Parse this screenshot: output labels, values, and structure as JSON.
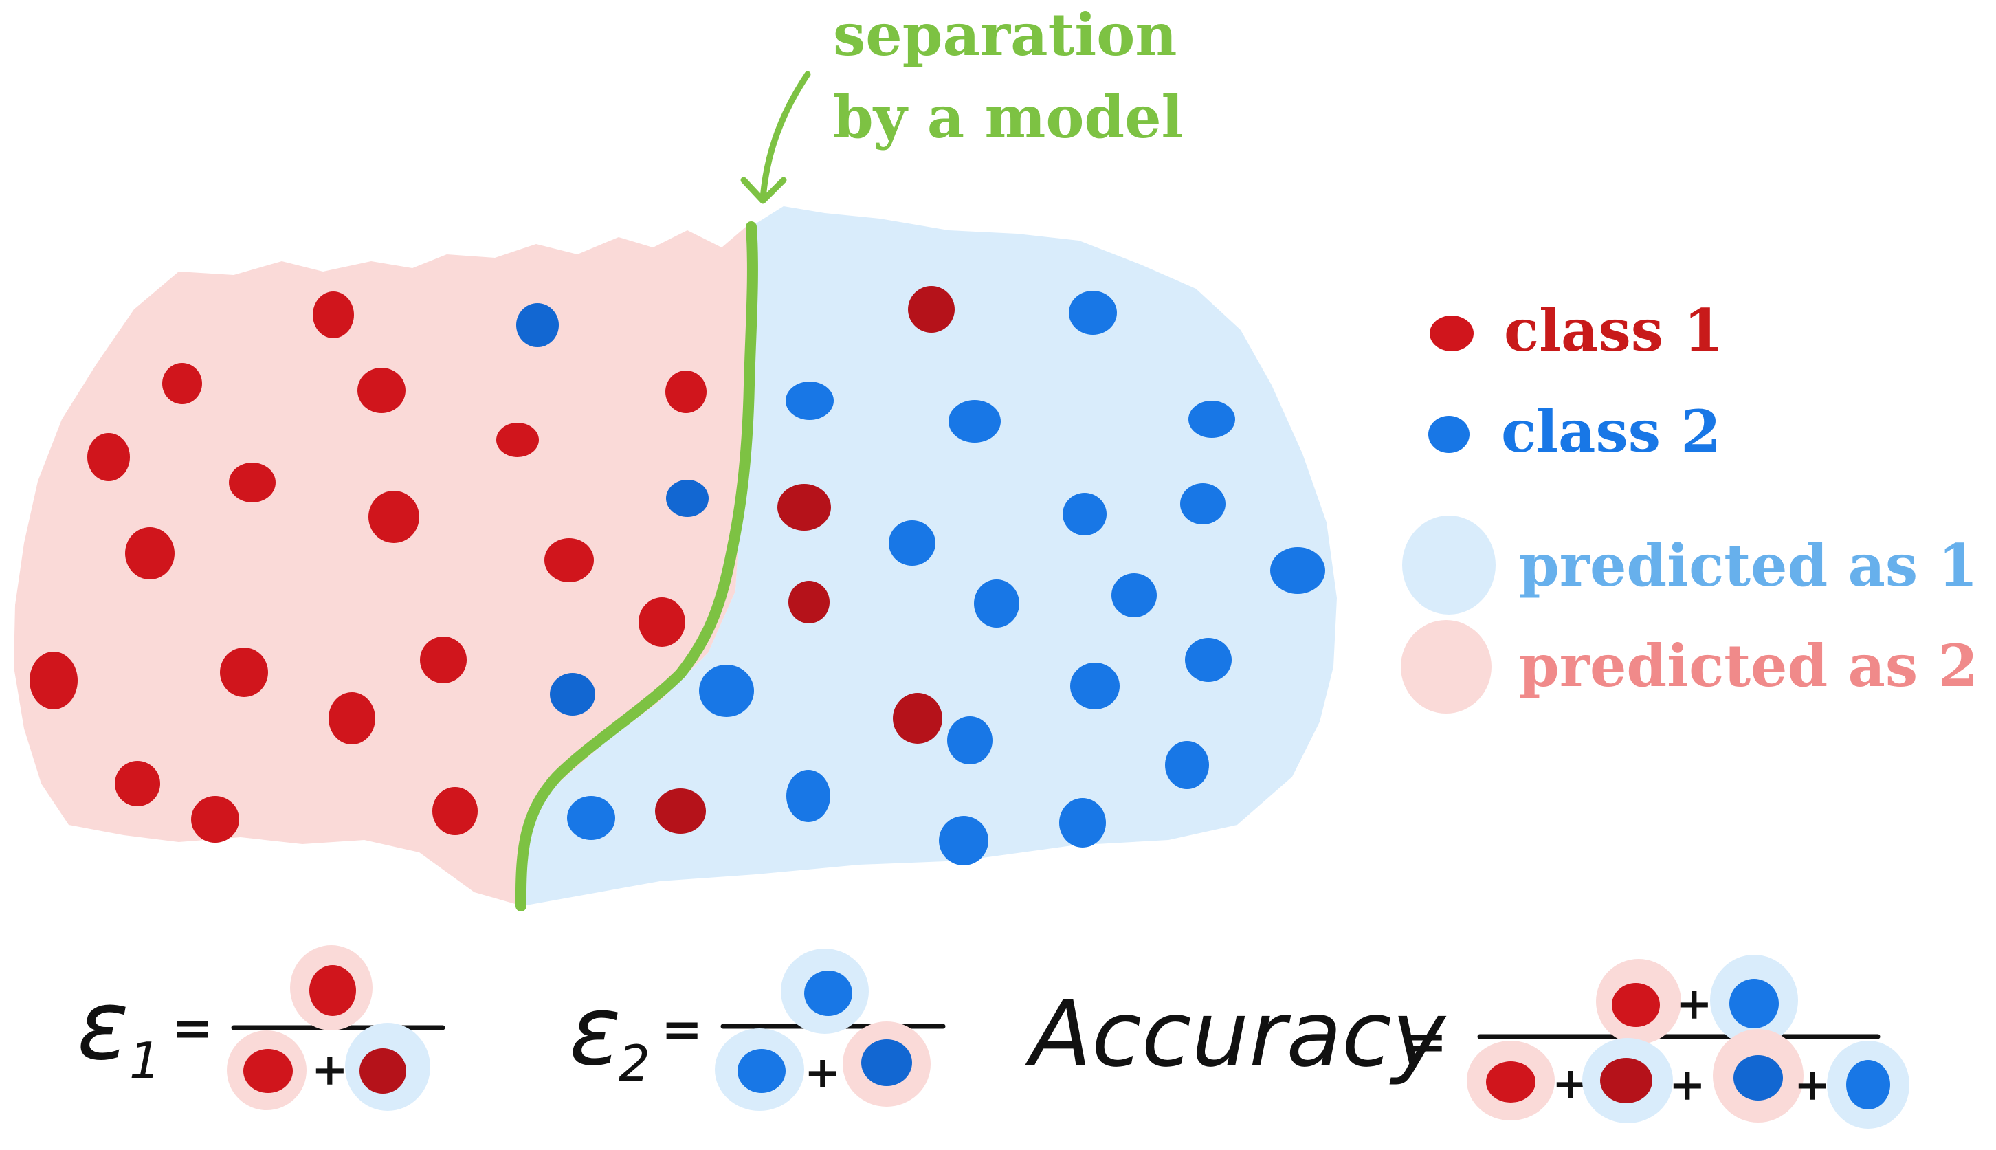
{
  "annotation": {
    "line1": "separation",
    "line2": "by a model"
  },
  "legend": {
    "class1": "class 1",
    "class2": "class 2",
    "pred1": "predicted as 1",
    "pred2": "predicted as 2"
  },
  "formulas": {
    "e1": {
      "symbol": "ε",
      "subscript": "1",
      "equals": "=",
      "plus": "+"
    },
    "e2": {
      "symbol": "ε",
      "subscript": "2",
      "equals": "=",
      "plus": "+"
    },
    "accuracy": {
      "label": "Accuracy",
      "equals": "=",
      "plus": "+"
    }
  },
  "colors": {
    "class1": "#d0151c",
    "class1_dark": "#b5121a",
    "class2": "#1877e6",
    "class2_dark": "#1267d2",
    "region_pred2": "#fadad8",
    "region_pred1": "#d9ecfb",
    "boundary": "#7dc243",
    "legend_pred1_text": "#67b0ec",
    "legend_pred2_text": "#f08a8a"
  }
}
